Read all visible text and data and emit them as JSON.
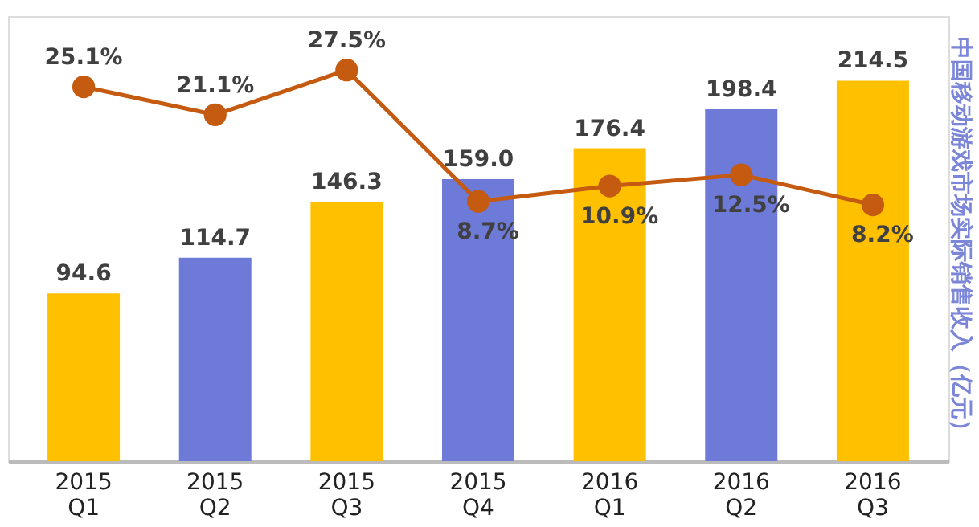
{
  "chart_data": {
    "type": "bar",
    "categories": [
      "2015 Q1",
      "2015 Q2",
      "2015 Q3",
      "2015 Q4",
      "2016 Q1",
      "2016 Q2",
      "2016 Q3"
    ],
    "series": [
      {
        "colors": [
          "#ffc000",
          "#6e7ad8",
          "#ffc000",
          "#6e7ad8",
          "#ffc000",
          "#6e7ad8",
          "#ffc000"
        ],
        "values": [
          94.6,
          114.7,
          146.3,
          159.0,
          176.4,
          198.4,
          214.5
        ],
        "value_labels": [
          "94.6",
          "114.7",
          "146.3",
          "159.0",
          "176.4",
          "198.4",
          "214.5"
        ]
      },
      {
        "type": "line",
        "axis": "y2",
        "color": "#c55a11",
        "values": [
          25.1,
          21.1,
          27.5,
          8.7,
          10.9,
          12.5,
          8.2
        ],
        "value_labels": [
          "25.1%",
          "21.1%",
          "27.5%",
          "8.7%",
          "10.9%",
          "12.5%",
          "8.2%"
        ]
      }
    ],
    "y2label": "中国移动游戏市场实际销售收入（亿元）",
    "data_labels": true,
    "marker": "circle",
    "grid": false
  }
}
